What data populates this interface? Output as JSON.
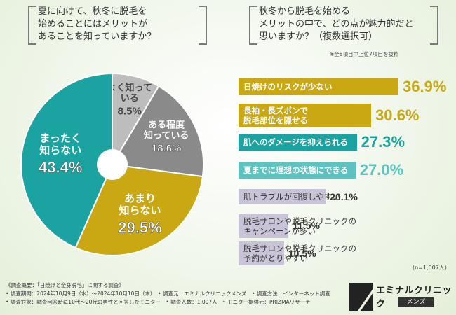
{
  "colors": {
    "teal": "#1aa3a1",
    "gold": "#c9a814",
    "gray_dark": "#8a8a8a",
    "gray_light": "#bdbdbd",
    "bar_teal_light": "#5dc3c1",
    "bar_lilac": "#c9c3d8"
  },
  "left_question": "夏に向けて、秋冬に脱毛を\n始めることにはメリットが\nあることを知っていますか？",
  "right_question": "秋冬から脱毛を始める\nメリットの中で、どの点が魅力的だと\n思いますか？（複数選択可）",
  "right_note": "※全8項目中上位7項目を抜粋",
  "sample_size": "(n=1,007人)",
  "chart_data": [
    {
      "type": "pie",
      "title": "夏に向けて、秋冬に脱毛を始めることにはメリットがあることを知っていますか？",
      "slices": [
        {
          "label": "よく知って\nいる",
          "value": 8.5,
          "value_label": "8.5%",
          "color": "#bdbdbd"
        },
        {
          "label": "ある程度\n知っている",
          "value": 18.6,
          "value_label": "18.6%",
          "color": "#8a8a8a"
        },
        {
          "label": "あまり\n知らない",
          "value": 29.5,
          "value_label": "29.5%",
          "color": "#c9a814"
        },
        {
          "label": "まったく\n知らない",
          "value": 43.4,
          "value_label": "43.4%",
          "color": "#1aa3a1"
        }
      ]
    },
    {
      "type": "bar",
      "orientation": "horizontal",
      "title": "秋冬から脱毛を始めるメリットの中で、どの点が魅力的だと思いますか？（複数選択可）",
      "categories": [
        "日焼けのリスクが少ない",
        "長袖・長ズボンで\n脱毛部位を隠せる",
        "肌へのダメージを抑えられる",
        "夏までに理想の状態にできる",
        "肌トラブルが回復しやすい",
        "脱毛サロンや脱毛クリニックの\nキャンペーンが多い",
        "脱毛サロンや脱毛クリニックの\n予約がとりやすい"
      ],
      "values": [
        36.9,
        30.6,
        27.3,
        27.0,
        20.1,
        11.5,
        10.5
      ],
      "value_labels": [
        "36.9%",
        "30.6%",
        "27.3%",
        "27.0%",
        "20.1%",
        "11.5%",
        "10.5%"
      ],
      "bar_colors": [
        "#c9a814",
        "#c9a814",
        "#1aa3a1",
        "#5dc3c1",
        "#c9c3d8",
        "#c9c3d8",
        "#c9c3d8"
      ],
      "label_colors": [
        "#ffffff",
        "#ffffff",
        "#ffffff",
        "#ffffff",
        "#333333",
        "#333333",
        "#333333"
      ],
      "value_colors": [
        "#c9a814",
        "#c9a814",
        "#1aa3a1",
        "#5dc3c1",
        "#333333",
        "#333333",
        "#333333"
      ],
      "xlim": [
        0,
        40
      ]
    }
  ],
  "footer": {
    "line1": "《調査概要：「日焼けと全身脱毛」に関する調査》",
    "line2": "• 調査期間：2024年10月9日（水）〜2024年10月10日（木）　• 調査元：エミナルクリニックメンズ　• 調査方法：インターネット調査",
    "line3": "• 調査対象：調査回答時に10代〜20代の男性と回答したモニター　• 調査人数：1,007人　• モニター提供元：PRIZMAリサーチ"
  },
  "logo": {
    "name": "エミナルクリニック",
    "sub": "メンズ"
  }
}
